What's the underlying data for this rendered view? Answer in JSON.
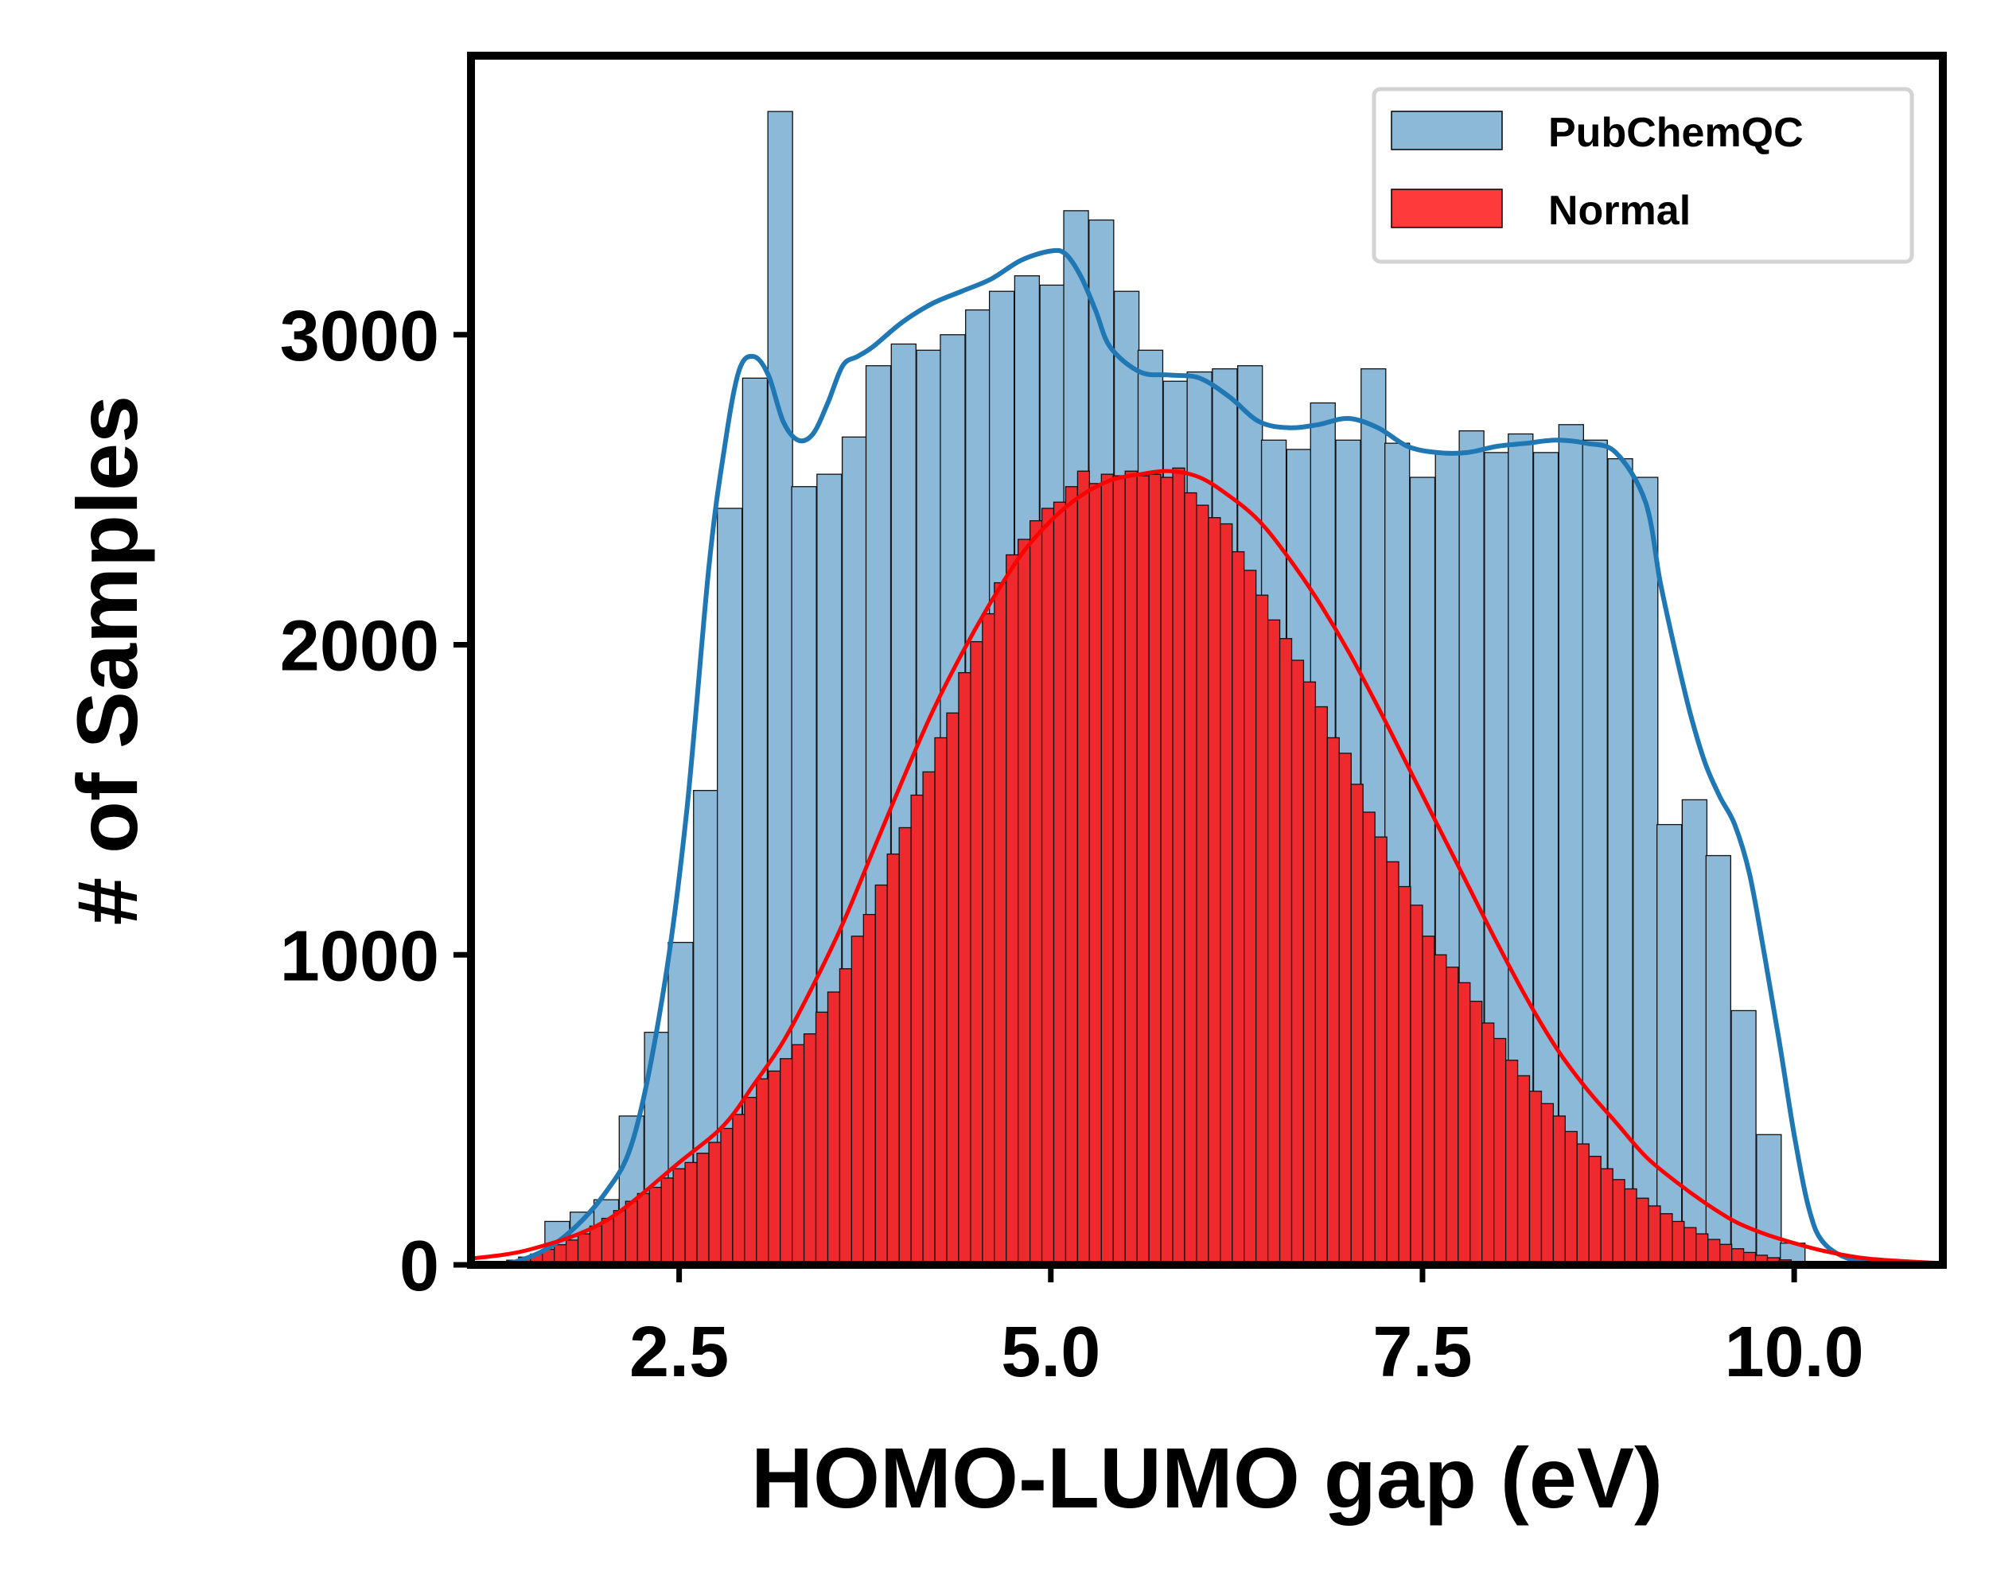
{
  "chart_data": {
    "type": "bar",
    "xlabel": "HOMO-LUMO gap (eV)",
    "ylabel": "# of Samples",
    "xlim": [
      1.1,
      11.0
    ],
    "ylim": [
      0,
      3900
    ],
    "xticks": [
      2.5,
      5.0,
      7.5,
      10.0
    ],
    "xtick_labels": [
      "2.5",
      "5.0",
      "7.5",
      "10.0"
    ],
    "yticks": [
      0,
      1000,
      2000,
      3000
    ],
    "ytick_labels": [
      "0",
      "1000",
      "2000",
      "3000"
    ],
    "legend": {
      "position": "top-right",
      "entries": [
        "PubChemQC",
        "Normal"
      ]
    },
    "colors": {
      "pubchemqc_bar": "#8db9d9",
      "pubchemqc_kde": "#1f77b4",
      "normal_bar": "#ee2a2f",
      "normal_kde": "#ff0000"
    },
    "series": [
      {
        "name": "PubChemQC",
        "bin_width": 0.166,
        "x": [
          1.68,
          1.85,
          2.01,
          2.18,
          2.35,
          2.51,
          2.68,
          2.84,
          3.01,
          3.18,
          3.34,
          3.51,
          3.68,
          3.84,
          4.01,
          4.18,
          4.34,
          4.51,
          4.67,
          4.84,
          5.01,
          5.17,
          5.34,
          5.51,
          5.67,
          5.84,
          6.0,
          6.17,
          6.34,
          6.5,
          6.67,
          6.83,
          7.0,
          7.17,
          7.33,
          7.5,
          7.67,
          7.83,
          8.0,
          8.16,
          8.33,
          8.5,
          8.66,
          8.83,
          9.0,
          9.16,
          9.33,
          9.49,
          9.66,
          9.83,
          9.99,
          10.16,
          10.33,
          10.49
        ],
        "values": [
          140,
          170,
          210,
          480,
          750,
          1040,
          1530,
          2440,
          2860,
          3720,
          2510,
          2550,
          2670,
          2900,
          2970,
          2950,
          3000,
          3080,
          3140,
          3190,
          3160,
          3400,
          3370,
          3140,
          2950,
          2850,
          2880,
          2890,
          2900,
          2660,
          2630,
          2780,
          2660,
          2890,
          2650,
          2540,
          2620,
          2690,
          2620,
          2680,
          2620,
          2710,
          2660,
          2600,
          2540,
          1420,
          1500,
          1320,
          820,
          420,
          70,
          10,
          0,
          0
        ]
      },
      {
        "name": "Normal",
        "bin_width": 0.08,
        "x": [
          1.3,
          1.38,
          1.46,
          1.54,
          1.62,
          1.7,
          1.78,
          1.86,
          1.94,
          2.02,
          2.1,
          2.18,
          2.26,
          2.34,
          2.42,
          2.5,
          2.58,
          2.66,
          2.74,
          2.82,
          2.9,
          2.98,
          3.06,
          3.14,
          3.22,
          3.3,
          3.38,
          3.46,
          3.54,
          3.62,
          3.7,
          3.78,
          3.86,
          3.94,
          4.02,
          4.1,
          4.18,
          4.26,
          4.34,
          4.42,
          4.5,
          4.58,
          4.66,
          4.74,
          4.82,
          4.9,
          4.98,
          5.06,
          5.14,
          5.22,
          5.3,
          5.38,
          5.46,
          5.54,
          5.62,
          5.7,
          5.78,
          5.86,
          5.94,
          6.02,
          6.1,
          6.18,
          6.26,
          6.34,
          6.42,
          6.5,
          6.58,
          6.66,
          6.74,
          6.82,
          6.9,
          6.98,
          7.06,
          7.14,
          7.22,
          7.3,
          7.38,
          7.46,
          7.54,
          7.62,
          7.7,
          7.78,
          7.86,
          7.94,
          8.02,
          8.1,
          8.18,
          8.26,
          8.34,
          8.42,
          8.5,
          8.58,
          8.66,
          8.74,
          8.82,
          8.9,
          8.98,
          9.06,
          9.14,
          9.22,
          9.3,
          9.38,
          9.46,
          9.54,
          9.62,
          9.7,
          9.78,
          9.86,
          9.94,
          10.02,
          10.1,
          10.18,
          10.26,
          10.34,
          10.42,
          10.5,
          10.58,
          10.66,
          10.74,
          10.82,
          10.9
        ],
        "values": [
          10,
          15,
          25,
          35,
          50,
          65,
          80,
          100,
          125,
          150,
          175,
          205,
          230,
          250,
          280,
          310,
          330,
          360,
          395,
          440,
          485,
          540,
          600,
          625,
          665,
          710,
          745,
          815,
          880,
          955,
          1060,
          1130,
          1225,
          1325,
          1410,
          1515,
          1590,
          1700,
          1780,
          1910,
          2010,
          2100,
          2200,
          2290,
          2340,
          2400,
          2440,
          2460,
          2510,
          2560,
          2520,
          2550,
          2545,
          2560,
          2545,
          2550,
          2540,
          2570,
          2490,
          2450,
          2410,
          2390,
          2300,
          2240,
          2160,
          2080,
          2020,
          1950,
          1880,
          1800,
          1700,
          1650,
          1550,
          1460,
          1380,
          1300,
          1220,
          1160,
          1060,
          1000,
          960,
          910,
          850,
          780,
          730,
          660,
          610,
          560,
          520,
          480,
          430,
          390,
          350,
          310,
          275,
          245,
          215,
          190,
          165,
          140,
          120,
          100,
          82,
          66,
          52,
          40,
          31,
          23,
          16,
          10,
          7,
          4,
          2,
          1,
          0,
          0,
          0,
          0,
          0,
          0,
          0
        ]
      }
    ],
    "kde": [
      {
        "name": "PubChemQC",
        "x": [
          1.1,
          1.4,
          1.7,
          2.0,
          2.2,
          2.4,
          2.55,
          2.7,
          2.8,
          2.9,
          3.0,
          3.1,
          3.2,
          3.3,
          3.4,
          3.5,
          3.6,
          3.7,
          3.8,
          4.0,
          4.2,
          4.4,
          4.6,
          4.8,
          5.0,
          5.1,
          5.2,
          5.3,
          5.4,
          5.6,
          5.8,
          6.0,
          6.2,
          6.4,
          6.6,
          6.8,
          7.0,
          7.2,
          7.4,
          7.6,
          7.8,
          8.0,
          8.2,
          8.4,
          8.6,
          8.8,
          9.0,
          9.1,
          9.2,
          9.3,
          9.4,
          9.5,
          9.6,
          9.7,
          9.8,
          9.9,
          10.0,
          10.1,
          10.2,
          10.4,
          10.7,
          11.0
        ],
        "values": [
          0,
          10,
          80,
          230,
          420,
          900,
          1460,
          2250,
          2620,
          2880,
          2930,
          2870,
          2720,
          2660,
          2680,
          2780,
          2900,
          2930,
          2960,
          3040,
          3100,
          3140,
          3180,
          3240,
          3270,
          3260,
          3190,
          3080,
          2960,
          2880,
          2870,
          2860,
          2800,
          2720,
          2700,
          2710,
          2730,
          2700,
          2640,
          2620,
          2620,
          2640,
          2650,
          2660,
          2650,
          2620,
          2460,
          2200,
          1980,
          1780,
          1620,
          1510,
          1420,
          1260,
          1000,
          720,
          420,
          180,
          70,
          15,
          2,
          0
        ]
      },
      {
        "name": "Normal",
        "x": [
          1.1,
          1.5,
          2.0,
          2.5,
          2.8,
          3.0,
          3.2,
          3.4,
          3.6,
          3.8,
          4.0,
          4.2,
          4.4,
          4.6,
          4.8,
          5.0,
          5.2,
          5.4,
          5.6,
          5.8,
          6.0,
          6.2,
          6.4,
          6.6,
          6.8,
          7.0,
          7.2,
          7.4,
          7.6,
          7.8,
          8.0,
          8.2,
          8.4,
          8.6,
          8.8,
          9.0,
          9.2,
          9.4,
          9.6,
          9.8,
          10.0,
          10.2,
          10.5,
          11.0
        ],
        "values": [
          20,
          50,
          140,
          330,
          450,
          580,
          720,
          900,
          1100,
          1330,
          1560,
          1780,
          1970,
          2140,
          2290,
          2400,
          2480,
          2530,
          2550,
          2560,
          2540,
          2480,
          2400,
          2280,
          2140,
          1980,
          1800,
          1610,
          1420,
          1230,
          1040,
          860,
          700,
          570,
          460,
          350,
          270,
          200,
          140,
          100,
          70,
          45,
          20,
          5
        ]
      }
    ]
  }
}
